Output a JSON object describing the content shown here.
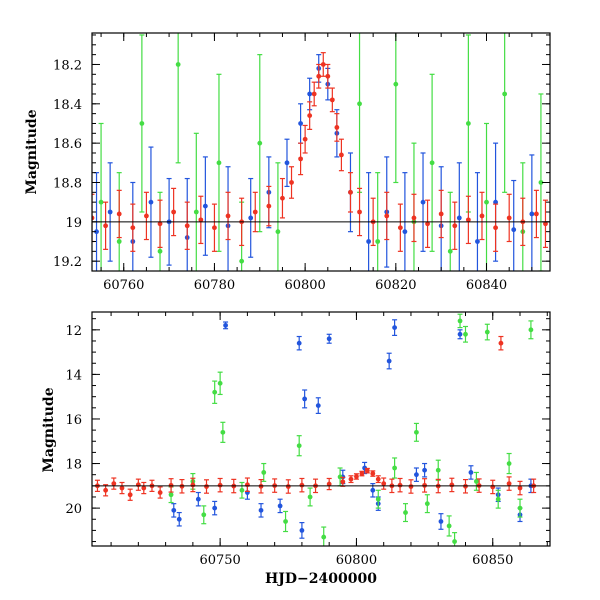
{
  "chart_data": [
    {
      "type": "scatter",
      "title": "",
      "xlabel": "",
      "ylabel": "Magnitude",
      "xlim": [
        60753,
        60854
      ],
      "ylim": [
        19.25,
        18.04
      ],
      "y_inverted": true,
      "xticks": [
        60760,
        60780,
        60800,
        60820,
        60840
      ],
      "yticks": [
        18.2,
        18.4,
        18.6,
        18.8,
        19,
        19.2
      ],
      "ytick_labels": [
        "18.2",
        "18.4",
        "18.6",
        "18.8",
        "19",
        "19.2"
      ],
      "reference_line": 19.0,
      "grid": false,
      "legend": "none",
      "series": [
        {
          "color": "#2255dd",
          "x": [
            60754,
            60757,
            60762,
            60766,
            60770,
            60774,
            60778,
            60783,
            60788,
            60792,
            60796,
            60799,
            60801,
            60803,
            60805,
            60807,
            60810,
            60814,
            60818,
            60822,
            60826,
            60830,
            60834,
            60838,
            60842,
            60846,
            60850
          ],
          "y": [
            19.05,
            18.95,
            19.1,
            18.9,
            19.0,
            19.08,
            18.92,
            19.02,
            18.98,
            18.85,
            18.7,
            18.5,
            18.35,
            18.22,
            18.3,
            18.55,
            18.85,
            19.1,
            18.95,
            19.05,
            18.9,
            19.02,
            18.98,
            19.1,
            18.9,
            19.04,
            18.96
          ],
          "err": [
            0.3,
            0.25,
            0.3,
            0.28,
            0.22,
            0.3,
            0.25,
            0.3,
            0.2,
            0.18,
            0.12,
            0.1,
            0.08,
            0.07,
            0.08,
            0.12,
            0.2,
            0.35,
            0.28,
            0.3,
            0.25,
            0.3,
            0.28,
            0.35,
            0.3,
            0.25,
            0.3
          ]
        },
        {
          "color": "#44dd44",
          "x": [
            60755,
            60759,
            60764,
            60768,
            60772,
            60776,
            60781,
            60786,
            60790,
            60794,
            60812,
            60816,
            60820,
            60824,
            60828,
            60832,
            60836,
            60840,
            60844,
            60848,
            60852
          ],
          "y": [
            18.9,
            19.1,
            18.5,
            19.15,
            18.2,
            18.95,
            18.7,
            19.2,
            18.6,
            19.05,
            18.4,
            19.1,
            18.3,
            19.0,
            18.7,
            19.15,
            18.5,
            18.9,
            18.35,
            19.05,
            18.8
          ],
          "err": [
            0.4,
            0.35,
            0.45,
            0.3,
            0.5,
            0.4,
            0.45,
            0.3,
            0.45,
            0.35,
            0.45,
            0.35,
            0.5,
            0.4,
            0.45,
            0.3,
            0.45,
            0.4,
            0.5,
            0.35,
            0.45
          ]
        },
        {
          "color": "#ee3322",
          "x": [
            60753,
            60756,
            60759,
            60762,
            60765,
            60768,
            60771,
            60774,
            60777,
            60780,
            60783,
            60786,
            60789,
            60792,
            60795,
            60797,
            60799,
            60800,
            60801,
            60802,
            60803,
            60804,
            60805,
            60806,
            60807,
            60808,
            60810,
            60812,
            60815,
            60818,
            60821,
            60824,
            60827,
            60830,
            60833,
            60836,
            60839,
            60842,
            60845,
            60848,
            60851,
            60853
          ],
          "y": [
            18.98,
            19.02,
            18.96,
            19.03,
            18.97,
            19.01,
            18.95,
            19.02,
            18.99,
            19.03,
            18.97,
            19.0,
            18.95,
            18.92,
            18.88,
            18.8,
            18.68,
            18.58,
            18.46,
            18.35,
            18.26,
            18.2,
            18.26,
            18.38,
            18.52,
            18.66,
            18.85,
            18.95,
            19.0,
            18.97,
            19.03,
            18.98,
            19.01,
            18.96,
            19.02,
            18.99,
            18.97,
            19.03,
            18.98,
            19.0,
            18.96,
            19.01
          ],
          "err": [
            0.12,
            0.12,
            0.12,
            0.12,
            0.12,
            0.12,
            0.12,
            0.12,
            0.12,
            0.12,
            0.12,
            0.12,
            0.1,
            0.1,
            0.1,
            0.08,
            0.08,
            0.07,
            0.07,
            0.06,
            0.06,
            0.06,
            0.06,
            0.06,
            0.07,
            0.08,
            0.1,
            0.12,
            0.12,
            0.12,
            0.12,
            0.12,
            0.12,
            0.12,
            0.12,
            0.12,
            0.12,
            0.12,
            0.12,
            0.12,
            0.12,
            0.12
          ]
        }
      ]
    },
    {
      "type": "scatter",
      "title": "",
      "xlabel": "HJD−2400000",
      "ylabel": "Magnitude",
      "xlim": [
        60703,
        60871
      ],
      "ylim": [
        21.7,
        11.2
      ],
      "y_inverted": true,
      "xticks": [
        60750,
        60800,
        60850
      ],
      "yticks": [
        12,
        14,
        16,
        18,
        20
      ],
      "ytick_labels": [
        "12",
        "14",
        "16",
        "18",
        "20"
      ],
      "reference_line": 19.0,
      "grid": false,
      "legend": "none",
      "series": [
        {
          "color": "#2255dd",
          "x": [
            60733,
            60735,
            60742,
            60748,
            60752,
            60760,
            60765,
            60772,
            60779,
            60780,
            60781,
            60786,
            60790,
            60795,
            60803,
            60806,
            60808,
            60812,
            60814,
            60822,
            60825,
            60831,
            60838,
            60842,
            60852,
            60860,
            60864
          ],
          "y": [
            20.1,
            20.5,
            19.6,
            20.0,
            11.8,
            19.3,
            20.1,
            19.9,
            12.6,
            21.0,
            15.1,
            15.4,
            12.4,
            18.6,
            18.2,
            19.2,
            19.8,
            13.4,
            11.9,
            18.5,
            18.3,
            20.6,
            12.2,
            18.4,
            19.4,
            20.3,
            19.0
          ],
          "err": [
            0.3,
            0.3,
            0.3,
            0.3,
            0.15,
            0.3,
            0.3,
            0.3,
            0.3,
            0.35,
            0.4,
            0.35,
            0.2,
            0.3,
            0.25,
            0.3,
            0.3,
            0.35,
            0.35,
            0.3,
            0.3,
            0.35,
            0.2,
            0.3,
            0.3,
            0.3,
            0.3
          ]
        },
        {
          "color": "#44dd44",
          "x": [
            60732,
            60740,
            60744,
            60748,
            60750,
            60751,
            60758,
            60766,
            60774,
            60779,
            60783,
            60788,
            60794,
            60808,
            60814,
            60818,
            60822,
            60826,
            60830,
            60834,
            60836,
            60838,
            60840,
            60844,
            60848,
            60852,
            60856,
            60860,
            60864
          ],
          "y": [
            19.4,
            18.8,
            20.3,
            14.8,
            14.4,
            16.6,
            19.2,
            18.4,
            20.6,
            17.2,
            19.5,
            21.3,
            18.6,
            19.6,
            18.2,
            20.2,
            16.6,
            19.8,
            18.3,
            20.8,
            21.5,
            11.6,
            12.2,
            18.8,
            12.1,
            19.6,
            18.0,
            20.0,
            12.0
          ],
          "err": [
            0.35,
            0.35,
            0.4,
            0.5,
            0.5,
            0.45,
            0.35,
            0.4,
            0.45,
            0.45,
            0.4,
            0.45,
            0.4,
            0.4,
            0.45,
            0.4,
            0.4,
            0.4,
            0.45,
            0.45,
            0.4,
            0.3,
            0.35,
            0.4,
            0.35,
            0.4,
            0.45,
            0.4,
            0.4
          ]
        },
        {
          "color": "#ee3322",
          "x": [
            60705,
            60708,
            60711,
            60714,
            60717,
            60720,
            60722,
            60725,
            60728,
            60732,
            60736,
            60740,
            60745,
            60750,
            60755,
            60760,
            60765,
            60770,
            60775,
            60780,
            60785,
            60790,
            60795,
            60798,
            60800,
            60802,
            60804,
            60806,
            60808,
            60810,
            60813,
            60816,
            60820,
            60825,
            60830,
            60835,
            60840,
            60845,
            60850,
            60853,
            60856,
            60860,
            60865
          ],
          "y": [
            19.0,
            19.2,
            18.9,
            19.1,
            19.4,
            18.95,
            19.1,
            19.0,
            19.3,
            18.98,
            19.02,
            18.96,
            19.03,
            18.97,
            19.01,
            18.95,
            19.02,
            18.99,
            19.03,
            18.97,
            19.0,
            18.92,
            18.82,
            18.7,
            18.58,
            18.45,
            18.32,
            18.45,
            18.7,
            18.9,
            19.0,
            18.97,
            19.03,
            18.98,
            19.01,
            18.96,
            19.02,
            18.99,
            19.05,
            12.6,
            18.9,
            19.1,
            19.0
          ],
          "err": [
            0.25,
            0.25,
            0.25,
            0.25,
            0.25,
            0.25,
            0.25,
            0.25,
            0.25,
            0.3,
            0.3,
            0.3,
            0.3,
            0.3,
            0.3,
            0.3,
            0.3,
            0.3,
            0.3,
            0.3,
            0.3,
            0.25,
            0.2,
            0.15,
            0.12,
            0.1,
            0.1,
            0.12,
            0.15,
            0.25,
            0.3,
            0.3,
            0.3,
            0.3,
            0.3,
            0.3,
            0.3,
            0.3,
            0.3,
            0.3,
            0.3,
            0.3,
            0.3
          ]
        }
      ]
    }
  ]
}
